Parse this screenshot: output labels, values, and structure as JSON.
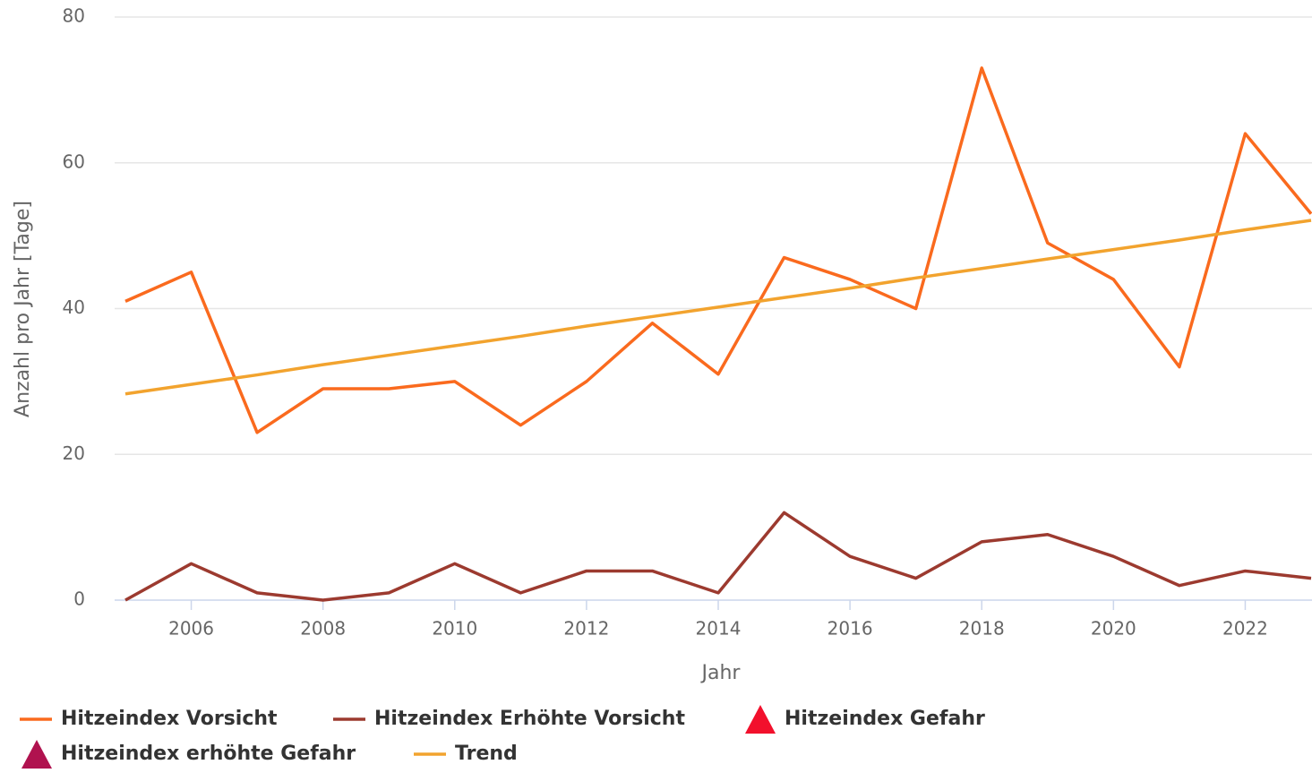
{
  "chart_data": {
    "type": "line",
    "x": [
      2005,
      2006,
      2007,
      2008,
      2009,
      2010,
      2011,
      2012,
      2013,
      2014,
      2015,
      2016,
      2017,
      2018,
      2019,
      2020,
      2021,
      2022,
      2023
    ],
    "xlim": [
      2005,
      2023
    ],
    "xticks": [
      2006,
      2008,
      2010,
      2012,
      2014,
      2016,
      2018,
      2020,
      2022
    ],
    "ylim": [
      0,
      80
    ],
    "yticks": [
      0,
      20,
      40,
      60,
      80
    ],
    "xlabel": "Jahr",
    "ylabel": "Anzahl pro Jahr [Tage]",
    "grid": true,
    "legend": "bottom",
    "series": [
      {
        "name": "Hitzeindex Vorsicht",
        "color": "#fa6a1e",
        "marker": "line",
        "values": [
          41,
          45,
          23,
          29,
          29,
          30,
          24,
          30,
          38,
          31,
          47,
          44,
          40,
          73,
          49,
          44,
          32,
          64,
          53
        ]
      },
      {
        "name": "Hitzeindex Erhöhte Vorsicht",
        "color": "#9c3a2f",
        "marker": "line",
        "values": [
          0,
          5,
          1,
          0,
          1,
          5,
          1,
          4,
          4,
          1,
          12,
          6,
          3,
          8,
          9,
          6,
          2,
          4,
          3
        ]
      },
      {
        "name": "Hitzeindex Gefahr",
        "color": "#f2102c",
        "marker": "triangle",
        "values": [
          null,
          null,
          null,
          null,
          null,
          null,
          null,
          null,
          null,
          null,
          null,
          null,
          null,
          null,
          null,
          null,
          null,
          null,
          null
        ]
      },
      {
        "name": "Hitzeindex erhöhte Gefahr",
        "color": "#b0124f",
        "marker": "triangle",
        "values": [
          null,
          null,
          null,
          null,
          null,
          null,
          null,
          null,
          null,
          null,
          null,
          null,
          null,
          null,
          null,
          null,
          null,
          null,
          null
        ]
      },
      {
        "name": "Trend",
        "color": "#f2a32e",
        "marker": "line",
        "values": [
          28.3,
          29.6,
          30.9,
          32.3,
          33.6,
          34.9,
          36.2,
          37.6,
          38.9,
          40.2,
          41.5,
          42.8,
          44.2,
          45.5,
          46.8,
          48.1,
          49.4,
          50.8,
          52.1
        ]
      }
    ]
  }
}
